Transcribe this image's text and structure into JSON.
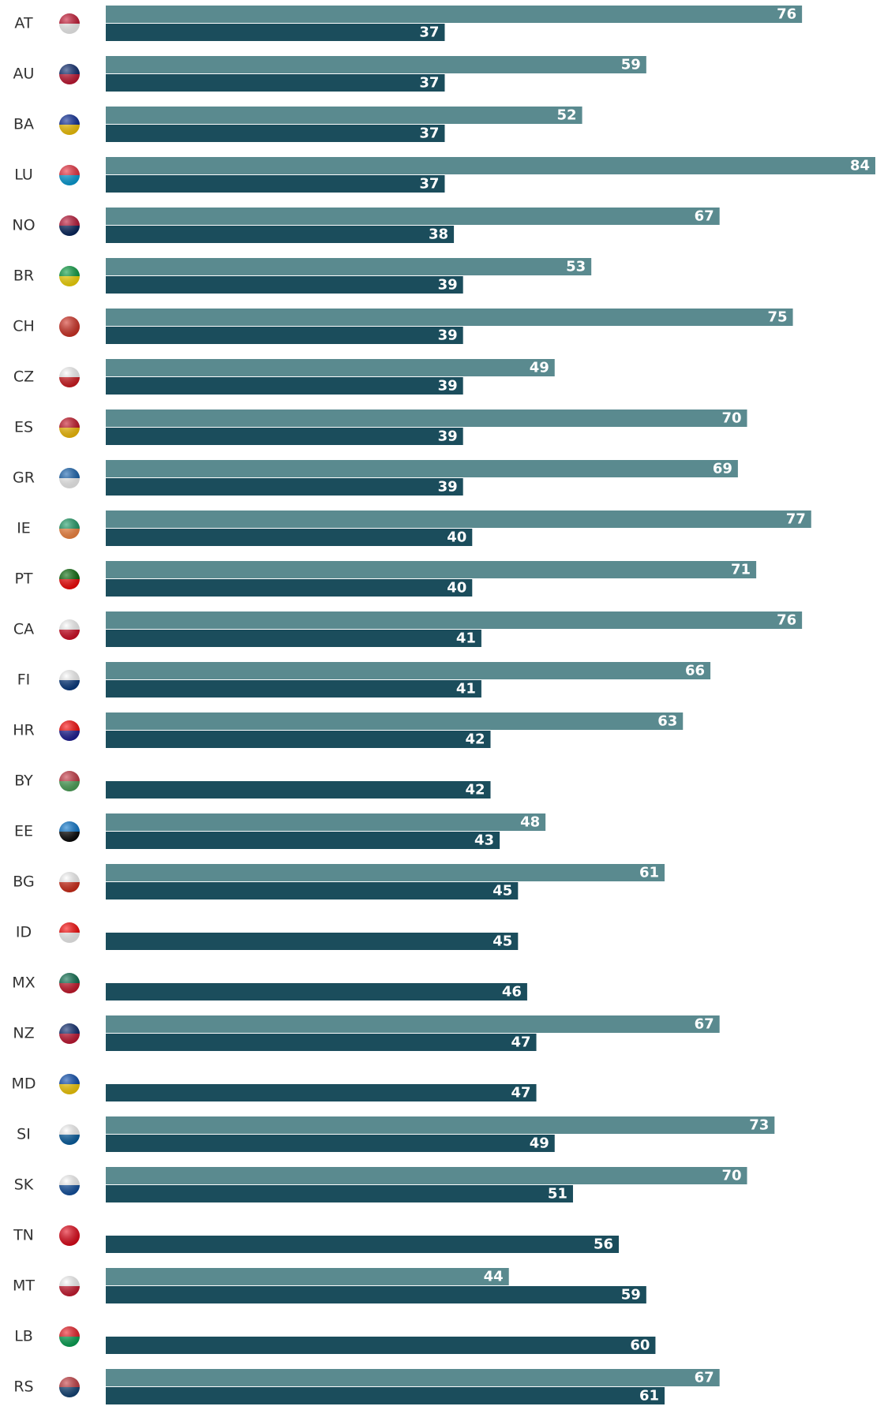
{
  "chart_data": {
    "type": "bar",
    "orientation": "horizontal",
    "categories": [
      "AT",
      "AU",
      "BA",
      "LU",
      "NO",
      "BR",
      "CH",
      "CZ",
      "ES",
      "GR",
      "IE",
      "PT",
      "CA",
      "FI",
      "HR",
      "BY",
      "EE",
      "BG",
      "ID",
      "MX",
      "NZ",
      "MD",
      "SI",
      "SK",
      "TN",
      "MT",
      "LB",
      "RS"
    ],
    "series": [
      {
        "color": "#5a8a8f",
        "values": [
          76,
          59,
          52,
          84,
          67,
          53,
          75,
          49,
          70,
          69,
          77,
          71,
          76,
          66,
          63,
          null,
          48,
          61,
          null,
          null,
          67,
          null,
          73,
          70,
          null,
          44,
          null,
          67
        ]
      },
      {
        "color": "#1b4d5c",
        "values": [
          37,
          37,
          37,
          37,
          38,
          39,
          39,
          39,
          39,
          39,
          40,
          40,
          41,
          41,
          42,
          42,
          43,
          45,
          45,
          46,
          47,
          47,
          49,
          51,
          56,
          59,
          60,
          61
        ]
      }
    ],
    "xlim": [
      0,
      84
    ]
  }
}
